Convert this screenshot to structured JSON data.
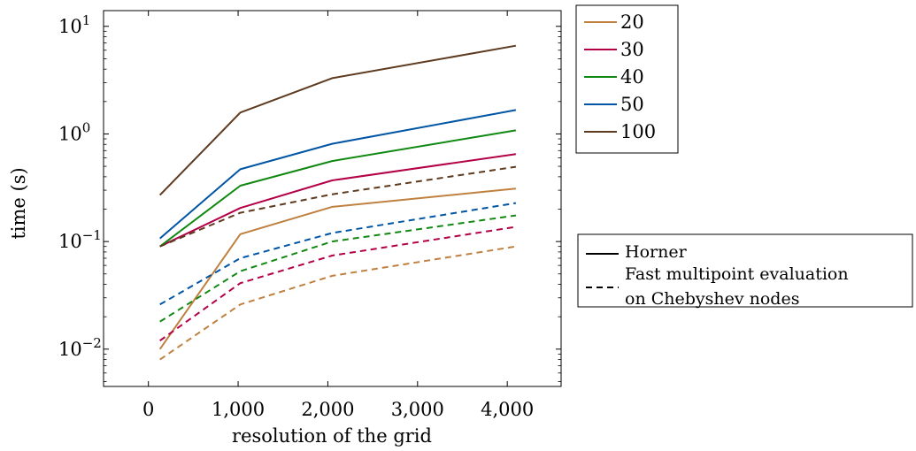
{
  "chart_data": {
    "type": "line",
    "title": "",
    "xlabel": "resolution of the grid",
    "ylabel": "time (s)",
    "xlim": [
      -500,
      4600
    ],
    "ylim": [
      0.0045,
      14
    ],
    "yscale": "log",
    "grid": false,
    "x": [
      128,
      1024,
      2048,
      4096
    ],
    "x_ticks": [
      0,
      1000,
      2000,
      3000,
      4000
    ],
    "x_tick_labels": [
      "0",
      "1,000",
      "2,000",
      "3,000",
      "4,000"
    ],
    "y_ticks": [
      {
        "value": 10,
        "base": "10",
        "exp": "1"
      },
      {
        "value": 1,
        "base": "10",
        "exp": "0"
      },
      {
        "value": 0.1,
        "base": "10",
        "exp": "−1"
      },
      {
        "value": 0.01,
        "base": "10",
        "exp": "−2"
      }
    ],
    "series": [
      {
        "name": "20",
        "method": "Horner",
        "color": "#bf8040",
        "dash": "solid",
        "values": [
          0.01,
          0.117,
          0.21,
          0.31
        ]
      },
      {
        "name": "30",
        "method": "Horner",
        "color": "#b30047",
        "dash": "solid",
        "values": [
          0.09,
          0.205,
          0.37,
          0.65
        ]
      },
      {
        "name": "40",
        "method": "Horner",
        "color": "#118811",
        "dash": "solid",
        "values": [
          0.09,
          0.33,
          0.56,
          1.08
        ]
      },
      {
        "name": "50",
        "method": "Horner",
        "color": "#0055a5",
        "dash": "solid",
        "values": [
          0.107,
          0.47,
          0.81,
          1.67
        ]
      },
      {
        "name": "100",
        "method": "Horner",
        "color": "#5e3a1f",
        "dash": "solid",
        "values": [
          0.27,
          1.58,
          3.3,
          6.6
        ]
      },
      {
        "name": "20",
        "method": "Fast multipoint evaluation on Chebyshev nodes",
        "color": "#bf8040",
        "dash": "dashed",
        "values": [
          0.008,
          0.026,
          0.048,
          0.09
        ]
      },
      {
        "name": "30",
        "method": "Fast multipoint evaluation on Chebyshev nodes",
        "color": "#b30047",
        "dash": "dashed",
        "values": [
          0.012,
          0.041,
          0.074,
          0.137
        ]
      },
      {
        "name": "40",
        "method": "Fast multipoint evaluation on Chebyshev nodes",
        "color": "#118811",
        "dash": "dashed",
        "values": [
          0.018,
          0.053,
          0.1,
          0.175
        ]
      },
      {
        "name": "50",
        "method": "Fast multipoint evaluation on Chebyshev nodes",
        "color": "#0055a5",
        "dash": "dashed",
        "values": [
          0.026,
          0.07,
          0.12,
          0.228
        ]
      },
      {
        "name": "100",
        "method": "Fast multipoint evaluation on Chebyshev nodes",
        "color": "#5e3a1f",
        "dash": "dashed",
        "values": [
          0.09,
          0.185,
          0.275,
          0.495
        ]
      }
    ],
    "legend_sizes": {
      "placement": "right-top",
      "items": [
        {
          "label": "20",
          "color": "#bf8040"
        },
        {
          "label": "30",
          "color": "#b30047"
        },
        {
          "label": "40",
          "color": "#118811"
        },
        {
          "label": "50",
          "color": "#0055a5"
        },
        {
          "label": "100",
          "color": "#5e3a1f"
        }
      ]
    },
    "legend_methods": {
      "placement": "right-middle",
      "items": [
        {
          "label_lines": [
            "Horner"
          ],
          "dash": "solid"
        },
        {
          "label_lines": [
            "Fast multipoint evaluation",
            "on Chebyshev nodes"
          ],
          "dash": "dashed"
        }
      ]
    }
  }
}
